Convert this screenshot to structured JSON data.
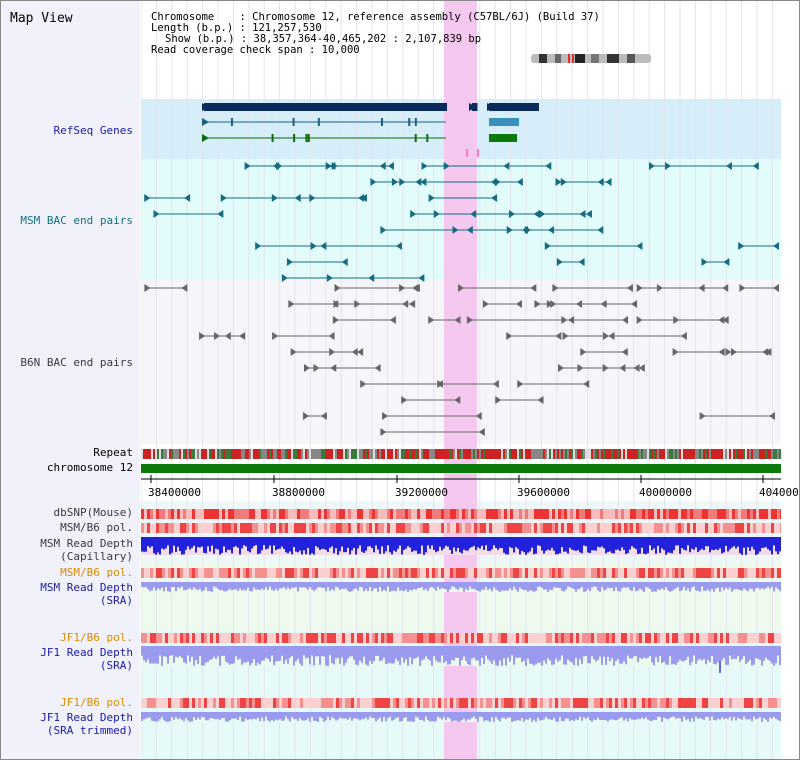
{
  "view_title": "Map View",
  "header": {
    "line1": "Chromosome    : Chromosome 12, reference assembly (C57BL/6J) (Build 37)",
    "line2": "Length (b.p.) : 121,257,530",
    "line3": "Show (b.p.) : 38,357,364-40,465,202 : 2,107,839 bp",
    "line4": "Read coverage check span : 10,000"
  },
  "tracks": {
    "refseq": "RefSeq Genes",
    "msm_bac": "MSM BAC end pairs",
    "b6n_bac": "B6N BAC end pairs",
    "repeat": "Repeat",
    "chromosome": "chromosome 12",
    "dbsnp": "dbSNP(Mouse)",
    "msm_pol_1": "MSM/B6 pol.",
    "msm_depth_cap_1": "MSM Read Depth",
    "msm_depth_cap_2": "(Capillary)",
    "msm_pol_2": "MSM/B6 pol.",
    "msm_depth_sra_1": "MSM Read Depth",
    "msm_depth_sra_2": "(SRA)",
    "jf1_pol_1": "JF1/B6 pol.",
    "jf1_depth_1": "JF1 Read Depth",
    "jf1_depth_2": "(SRA)",
    "jf1_pol_2": "JF1/B6 pol.",
    "jf1_trim_1": "JF1 Read Depth",
    "jf1_trim_2": "(SRA trimmed)"
  },
  "axis": {
    "ticks": [
      "38400000",
      "38800000",
      "39200000",
      "39600000",
      "40000000",
      "404000"
    ]
  },
  "colors": {
    "highlight": "#f5c8ef",
    "refseq_bg": "#d6eef9",
    "msm_bg": "#e2fbfb",
    "chromosome_bar": "#0b7a0b",
    "depth_blue": "#2222dd",
    "depth_sra": "#9a9aee"
  }
}
